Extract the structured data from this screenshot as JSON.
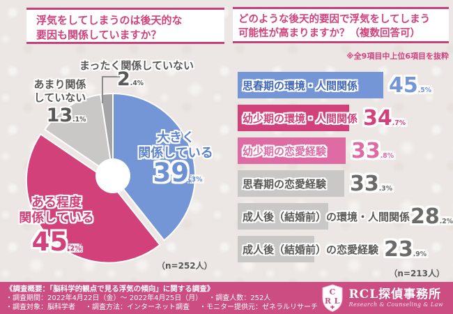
{
  "left_panel": {
    "title_lines": [
      "浮気をしてしまうのは後天的な",
      "要因も関係していますか？"
    ],
    "sample_note": "（n=252人）",
    "labels": {
      "large": [
        "大きく",
        "関係している"
      ],
      "some": [
        "ある程度",
        "関係している"
      ],
      "notmuch": [
        "あまり関係",
        "していない"
      ],
      "none": [
        "まったく関係していない"
      ]
    }
  },
  "right_panel": {
    "title_lines": [
      "どのような後天的要因で浮気をしてしまう",
      "可能性が高まりますか？（複数回答可）"
    ],
    "excerpt_note": "※全9項目中上位6項目を抜粋",
    "sample_note": "（n=213人）"
  },
  "chart_data": [
    {
      "type": "pie",
      "title": "浮気をしてしまうのは後天的な要因も関係していますか？",
      "sample_size": "（n=252人）",
      "direction": "clockwise",
      "start_angle": "12-oclock",
      "donut_hole": true,
      "segments": [
        {
          "label": "大きく関係している",
          "value": 39.3,
          "color": "#7495d6",
          "exploded": false
        },
        {
          "label": "ある程度関係している",
          "value": 45.2,
          "color": "#d2417a",
          "exploded": true
        },
        {
          "label": "あまり関係していない",
          "value": 13.1,
          "color": "#c9c8c6",
          "exploded": false
        },
        {
          "label": "まったく関係していない",
          "value": 2.4,
          "color": "#a5a5a7",
          "exploded": false
        }
      ]
    },
    {
      "type": "bar",
      "orientation": "horizontal",
      "title": "どのような後天的要因で浮気をしてしまう可能性が高まりますか？（複数回答可）",
      "note": "※全9項目中上位6項目を抜粋",
      "sample_size": "（n=213人）",
      "xlim": [
        0,
        50
      ],
      "items": [
        {
          "label": "思春期の環境・人間関係",
          "value": 45.5,
          "color": "#7495d6",
          "label_color": "#41superscript67b8",
          "pct_color": "#7495d6"
        },
        {
          "label": "幼少期の環境・人間関係",
          "value": 34.7,
          "color": "#d2417a",
          "label_color": "#d2417a",
          "pct_color": "#d2417a"
        },
        {
          "label": "幼少期の恋愛経験",
          "value": 33.8,
          "color": "#de6ba4",
          "label_color": "#de6ba4",
          "pct_color": "#de6ba4"
        },
        {
          "label": "思春期の恋愛経験",
          "value": 33.3,
          "color": "#c9c8c6",
          "label_color": "#595857",
          "pct_color": "#6b6a68"
        },
        {
          "label": "成人後（結婚前）の環境・人間関係",
          "value": 28.2,
          "color": "#c9c8c6",
          "label_color": "#595857",
          "pct_color": "#6b6a68"
        },
        {
          "label": "成人後（結婚前）の恋愛経験",
          "value": 23.9,
          "color": "#c9c8c6",
          "label_color": "#595857",
          "pct_color": "#6b6a68"
        }
      ]
    }
  ],
  "footer": {
    "heading": "《調査概要：「脳科学的観点で見る浮気の傾向」に関する調査》",
    "line2_items": [
      "・調査期間：2022年4月22日（金）～ 2022年4月25日（月）",
      "・調査人数：252人"
    ],
    "line3_items": [
      "・調査対象：脳科学者",
      "・調査方法：インターネット調査",
      "・モニター提供元：ゼネラルリサーチ"
    ],
    "logo": {
      "shield_letters": [
        "C",
        "R",
        "L"
      ],
      "name": "RCL探偵事務所",
      "tagline": "Research & Counseling & Law"
    }
  }
}
